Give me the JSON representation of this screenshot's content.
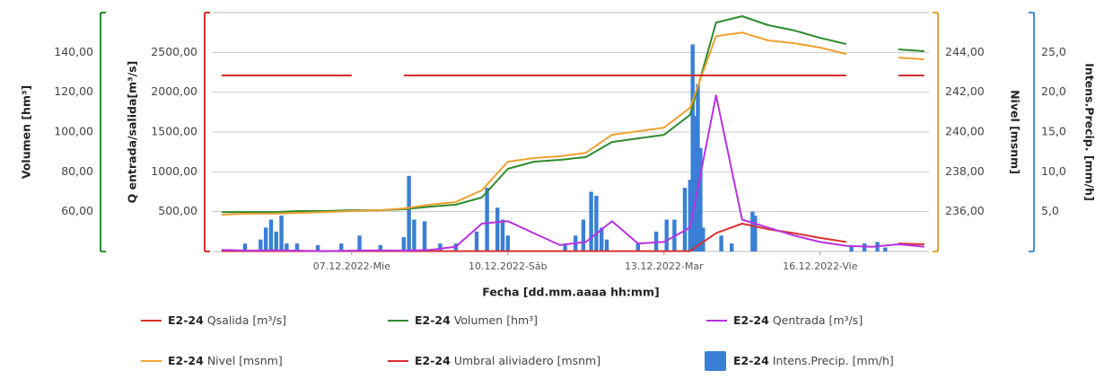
{
  "chart_data": {
    "type": "combo",
    "x_title": "Fecha [dd.mm.aaaa hh:mm]",
    "xlim": [
      4.33,
      18.09
    ],
    "xticks": [
      {
        "value": 7,
        "label": "07.12.2022-Mie"
      },
      {
        "value": 10,
        "label": "10.12.2022-Sáb"
      },
      {
        "value": 13,
        "label": "13.12.2022-Mar"
      },
      {
        "value": 16,
        "label": "16.12.2022-Vie"
      }
    ],
    "grid": true,
    "legend_prefix": "E2-24",
    "axes": [
      {
        "title": "Volumen [hm³]",
        "color": "#2e8b2e",
        "side": "left",
        "lim": [
          40,
          160
        ],
        "ticks": [
          {
            "value": 60,
            "label": "60,00"
          },
          {
            "value": 80,
            "label": "80,00"
          },
          {
            "value": 100,
            "label": "100,00"
          },
          {
            "value": 120,
            "label": "120,00"
          },
          {
            "value": 140,
            "label": "140,00"
          }
        ]
      },
      {
        "title": "Q entrada/salida[m³/s]",
        "color": "#d93030",
        "side": "left",
        "lim": [
          0,
          3000
        ],
        "ticks": [
          {
            "value": 500,
            "label": "500,00"
          },
          {
            "value": 1000,
            "label": "1000,00"
          },
          {
            "value": 1500,
            "label": "1500,00"
          },
          {
            "value": 2000,
            "label": "2000,00"
          },
          {
            "value": 2500,
            "label": "2500,00"
          }
        ]
      },
      {
        "title": "Nivel [msnm]",
        "color": "#f0a030",
        "side": "right",
        "lim": [
          234,
          246
        ],
        "ticks": [
          {
            "value": 236,
            "label": "236,00"
          },
          {
            "value": 238,
            "label": "238,00"
          },
          {
            "value": 240,
            "label": "240,00"
          },
          {
            "value": 242,
            "label": "242,00"
          },
          {
            "value": 244,
            "label": "244,00"
          }
        ]
      },
      {
        "title": "Intens.Precip. [mm/h]",
        "color": "#4a8fd8",
        "side": "right",
        "lim": [
          0,
          30
        ],
        "ticks": [
          {
            "value": 5,
            "label": "5,0"
          },
          {
            "value": 10,
            "label": "10,0"
          },
          {
            "value": 15,
            "label": "15,0"
          },
          {
            "value": 20,
            "label": "20,0"
          },
          {
            "value": 25,
            "label": "25,0"
          }
        ]
      }
    ],
    "x": [
      4.5,
      5,
      5.5,
      6,
      6.5,
      7,
      7.5,
      8,
      8.5,
      9,
      9.5,
      10,
      10.5,
      11,
      11.5,
      12,
      12.5,
      13,
      13.5,
      14,
      14.5,
      15,
      15.5,
      16,
      16.5,
      17,
      17.5,
      18
    ],
    "series": [
      {
        "name": "Qsalida [m³/s]",
        "color": "#d93030",
        "kind": "line",
        "axis": 1,
        "values": [
          5,
          5,
          5,
          5,
          5,
          5,
          5,
          5,
          5,
          5,
          5,
          5,
          5,
          5,
          5,
          5,
          5,
          5,
          5,
          230,
          350,
          280,
          230,
          170,
          120,
          null,
          100,
          90
        ]
      },
      {
        "name": "Volumen [hm³]",
        "color": "#2e8b2e",
        "kind": "line",
        "axis": 0,
        "values": [
          59.8,
          59.8,
          59.8,
          60.3,
          60.3,
          60.7,
          60.7,
          61.2,
          62.5,
          63.5,
          67.1,
          81.5,
          85.1,
          86.0,
          87.4,
          95.0,
          96.8,
          98.6,
          108.6,
          155.0,
          158.2,
          153.7,
          151.0,
          147.3,
          144.2,
          null,
          141.5,
          140.6
        ]
      },
      {
        "name": "Qentrada [m³/s]",
        "color": "#b832e0",
        "kind": "line",
        "axis": 1,
        "values": [
          20,
          10,
          15,
          10,
          5,
          10,
          15,
          10,
          20,
          60,
          350,
          380,
          230,
          80,
          120,
          380,
          100,
          120,
          300,
          1960,
          400,
          300,
          200,
          120,
          70,
          60,
          90,
          60
        ]
      },
      {
        "name": "Nivel [msnm]",
        "color": "#f0a030",
        "kind": "line",
        "axis": 2,
        "values": [
          235.85,
          235.9,
          235.9,
          235.94,
          235.98,
          236.03,
          236.07,
          236.16,
          236.35,
          236.48,
          237.07,
          238.51,
          238.69,
          238.78,
          238.96,
          239.86,
          240.04,
          240.22,
          241.22,
          244.82,
          245.0,
          244.6,
          244.46,
          244.24,
          243.92,
          null,
          243.74,
          243.65
        ]
      },
      {
        "name": "Umbral aliviadero [msnm]",
        "color": "#d32f2f",
        "kind": "line",
        "axis": 2,
        "values": [
          242.84,
          242.84,
          242.84,
          242.84,
          242.84,
          242.84,
          null,
          242.84,
          242.84,
          242.84,
          242.84,
          242.84,
          242.84,
          242.84,
          242.84,
          242.84,
          242.84,
          242.84,
          242.84,
          242.84,
          242.84,
          242.84,
          242.84,
          242.84,
          242.84,
          null,
          242.84,
          242.84
        ]
      },
      {
        "name": "Intens.Precip. [mm/h]",
        "color": "#3a7fd5",
        "kind": "bar",
        "axis": 3,
        "x": [
          4.95,
          5.25,
          5.35,
          5.45,
          5.55,
          5.65,
          5.75,
          5.95,
          6.35,
          6.8,
          7.15,
          7.55,
          8.0,
          8.1,
          8.2,
          8.4,
          8.7,
          9.0,
          9.4,
          9.6,
          9.8,
          9.9,
          10.0,
          11.1,
          11.3,
          11.45,
          11.6,
          11.7,
          11.8,
          11.9,
          12.5,
          12.85,
          13.05,
          13.2,
          13.4,
          13.5,
          13.55,
          13.6,
          13.65,
          13.7,
          13.75,
          14.1,
          14.3,
          14.7,
          14.75,
          16.6,
          16.85,
          17.1,
          17.25
        ],
        "values": [
          1,
          1.5,
          3,
          4,
          2.5,
          4.5,
          1,
          1,
          0.8,
          1,
          2,
          0.8,
          1.8,
          9.5,
          4,
          3.8,
          1,
          1,
          2.5,
          8,
          5.5,
          4,
          2,
          1,
          2,
          4,
          7.5,
          7,
          3,
          1.5,
          1,
          2.5,
          4,
          4,
          8,
          9,
          26,
          17,
          21,
          13,
          3,
          2,
          1,
          5,
          4.5,
          0.8,
          1,
          1.2,
          0.5
        ]
      }
    ]
  }
}
